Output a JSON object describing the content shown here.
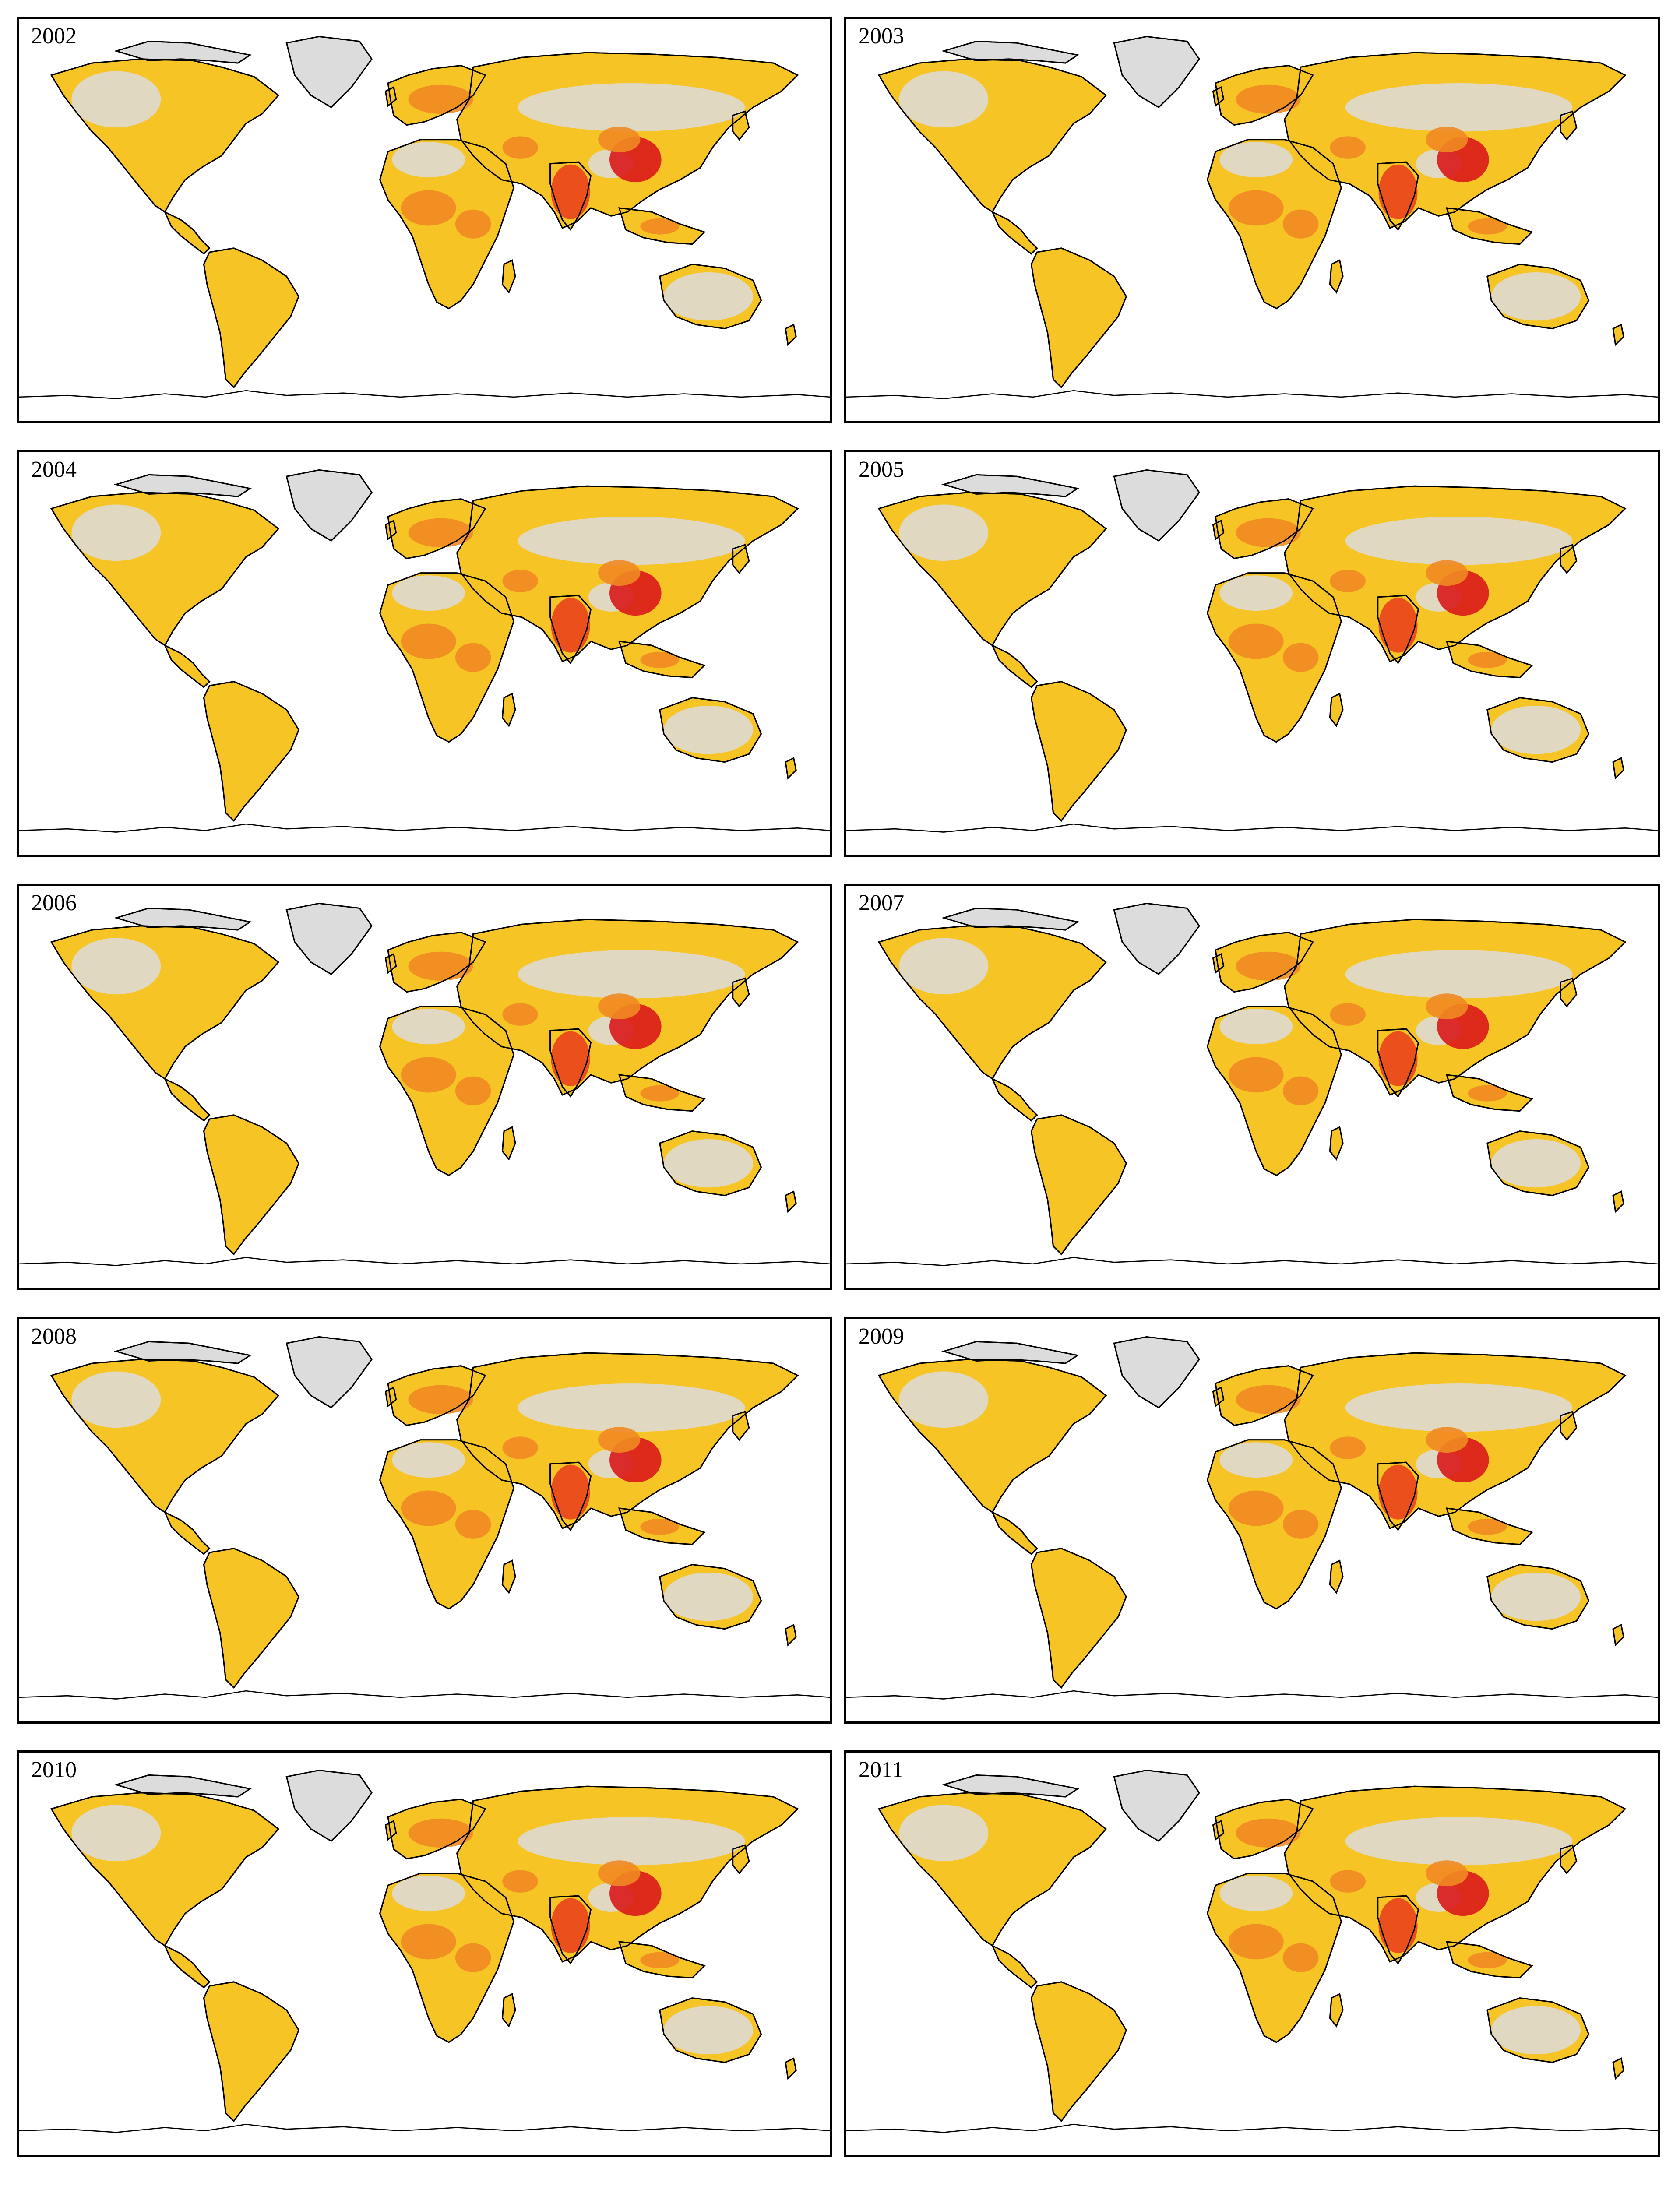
{
  "panels": [
    {
      "year": "2002"
    },
    {
      "year": "2003"
    },
    {
      "year": "2004"
    },
    {
      "year": "2005"
    },
    {
      "year": "2006"
    },
    {
      "year": "2007"
    },
    {
      "year": "2008"
    },
    {
      "year": "2009"
    },
    {
      "year": "2010"
    },
    {
      "year": "2011"
    }
  ],
  "colors": {
    "no_data": "#dcdcdc",
    "low": "#f7c425",
    "medium": "#f08a24",
    "high": "#e8421c",
    "very_high": "#d91a1a",
    "coastline": "#000000"
  }
}
